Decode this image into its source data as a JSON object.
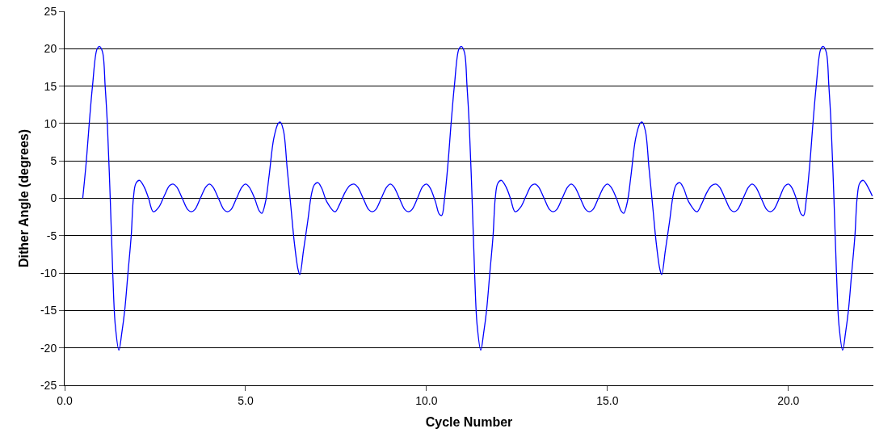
{
  "chart_data": {
    "type": "line",
    "xlabel": "Cycle Number",
    "ylabel": "Dither Angle (degrees)",
    "xlim": [
      0,
      22.35
    ],
    "xticks": [
      {
        "value": 0,
        "label": "0.0"
      },
      {
        "value": 5,
        "label": "5.0"
      },
      {
        "value": 10,
        "label": "10.0"
      },
      {
        "value": 15,
        "label": "15.0"
      },
      {
        "value": 20,
        "label": "20.0"
      }
    ],
    "ylim": [
      -25,
      25
    ],
    "yticks": [
      -25,
      -20,
      -15,
      -10,
      -5,
      0,
      5,
      10,
      15,
      20,
      25
    ],
    "grid": "y",
    "marker": "none",
    "line_style": "solid",
    "series": [
      {
        "color": "#0000ff",
        "x": [
          0.5,
          0.6,
          0.68,
          0.77,
          0.9,
          0.97,
          1.05,
          1.12,
          1.18,
          1.26,
          1.33,
          1.4,
          1.5,
          1.58,
          1.66,
          1.75,
          1.84,
          1.9,
          1.97,
          2.07,
          2.2,
          2.32,
          2.45,
          2.6,
          2.75,
          2.9,
          3.0,
          3.1,
          3.25,
          3.4,
          3.5,
          3.6,
          3.75,
          3.9,
          4.0,
          4.1,
          4.25,
          4.4,
          4.5,
          4.6,
          4.75,
          4.9,
          5.0,
          5.1,
          5.25,
          5.38,
          5.45,
          5.55,
          5.65,
          5.78,
          5.9,
          5.96,
          6.05,
          6.15,
          6.25,
          6.35,
          6.45,
          6.5,
          6.6,
          6.72,
          6.82,
          6.9,
          7.0,
          7.1,
          7.25,
          7.47,
          7.6,
          7.75,
          7.88,
          8.0,
          8.1,
          8.25,
          8.4,
          8.5,
          8.6,
          8.75,
          8.9,
          9.0,
          9.1,
          9.25,
          9.4,
          9.5,
          9.6,
          9.75,
          9.9,
          10.0,
          10.1,
          10.25,
          10.35,
          10.42,
          10.5,
          10.6,
          10.68,
          10.77,
          10.9,
          10.97,
          11.05,
          11.12,
          11.18,
          11.26,
          11.33,
          11.4,
          11.5,
          11.58,
          11.66,
          11.75,
          11.84,
          11.9,
          11.97,
          12.07,
          12.2,
          12.32,
          12.45,
          12.6,
          12.75,
          12.9,
          13.0,
          13.1,
          13.25,
          13.4,
          13.5,
          13.6,
          13.75,
          13.9,
          14.0,
          14.1,
          14.25,
          14.4,
          14.5,
          14.6,
          14.75,
          14.9,
          15.0,
          15.1,
          15.25,
          15.38,
          15.45,
          15.55,
          15.65,
          15.78,
          15.9,
          15.96,
          16.05,
          16.15,
          16.25,
          16.35,
          16.45,
          16.5,
          16.6,
          16.72,
          16.82,
          16.9,
          17.0,
          17.1,
          17.25,
          17.47,
          17.6,
          17.75,
          17.88,
          18.0,
          18.1,
          18.25,
          18.4,
          18.5,
          18.6,
          18.75,
          18.9,
          19.0,
          19.1,
          19.25,
          19.4,
          19.5,
          19.6,
          19.75,
          19.9,
          20.0,
          20.1,
          20.25,
          20.35,
          20.42,
          20.5,
          20.6,
          20.68,
          20.77,
          20.9,
          20.97,
          21.05,
          21.12,
          21.18,
          21.26,
          21.33,
          21.4,
          21.5,
          21.58,
          21.66,
          21.75,
          21.84,
          21.9,
          21.97,
          22.07,
          22.2,
          22.32
        ],
        "values": [
          0,
          5,
          10,
          15,
          20,
          20.3,
          19.5,
          15,
          10,
          0,
          -10,
          -17,
          -20.3,
          -18,
          -15,
          -10,
          -5,
          0,
          2,
          2.4,
          1.5,
          0,
          -1.8,
          -1.2,
          0.3,
          1.7,
          1.9,
          1.5,
          0,
          -1.5,
          -1.8,
          -1.5,
          0,
          1.5,
          1.9,
          1.5,
          0,
          -1.5,
          -1.8,
          -1.5,
          0,
          1.5,
          1.9,
          1.5,
          0,
          -1.7,
          -2.0,
          -0.5,
          3,
          8,
          10,
          10.2,
          9,
          4,
          -1,
          -6,
          -9.5,
          -10.2,
          -7,
          -3,
          0.5,
          1.8,
          2.1,
          1.4,
          -0.5,
          -1.8,
          -0.8,
          0.8,
          1.7,
          1.9,
          1.5,
          0,
          -1.5,
          -1.8,
          -1.5,
          0,
          1.5,
          1.9,
          1.5,
          0,
          -1.5,
          -1.8,
          -1.5,
          0,
          1.6,
          1.9,
          1.4,
          -0.5,
          -2.1,
          -2.3,
          0,
          5,
          10,
          15,
          20,
          20.3,
          19.5,
          15,
          10,
          0,
          -10,
          -17,
          -20.3,
          -18,
          -15,
          -10,
          -5,
          0,
          2,
          2.4,
          1.5,
          0,
          -1.8,
          -1.2,
          0.3,
          1.7,
          1.9,
          1.5,
          0,
          -1.5,
          -1.8,
          -1.5,
          0,
          1.5,
          1.9,
          1.5,
          0,
          -1.5,
          -1.8,
          -1.5,
          0,
          1.5,
          1.9,
          1.5,
          0,
          -1.7,
          -2.0,
          -0.5,
          3,
          8,
          10,
          10.2,
          9,
          4,
          -1,
          -6,
          -9.5,
          -10.2,
          -7,
          -3,
          0.5,
          1.8,
          2.1,
          1.4,
          -0.5,
          -1.8,
          -0.8,
          0.8,
          1.7,
          1.9,
          1.5,
          0,
          -1.5,
          -1.8,
          -1.5,
          0,
          1.5,
          1.9,
          1.5,
          0,
          -1.5,
          -1.8,
          -1.5,
          0,
          1.6,
          1.9,
          1.4,
          -0.5,
          -2.1,
          -2.3,
          0,
          5,
          10,
          15,
          20,
          20.3,
          19.5,
          15,
          10,
          0,
          -10,
          -17,
          -20.3,
          -18,
          -15,
          -10,
          -5,
          0,
          2,
          2.4,
          1.5,
          0.3
        ]
      }
    ]
  }
}
